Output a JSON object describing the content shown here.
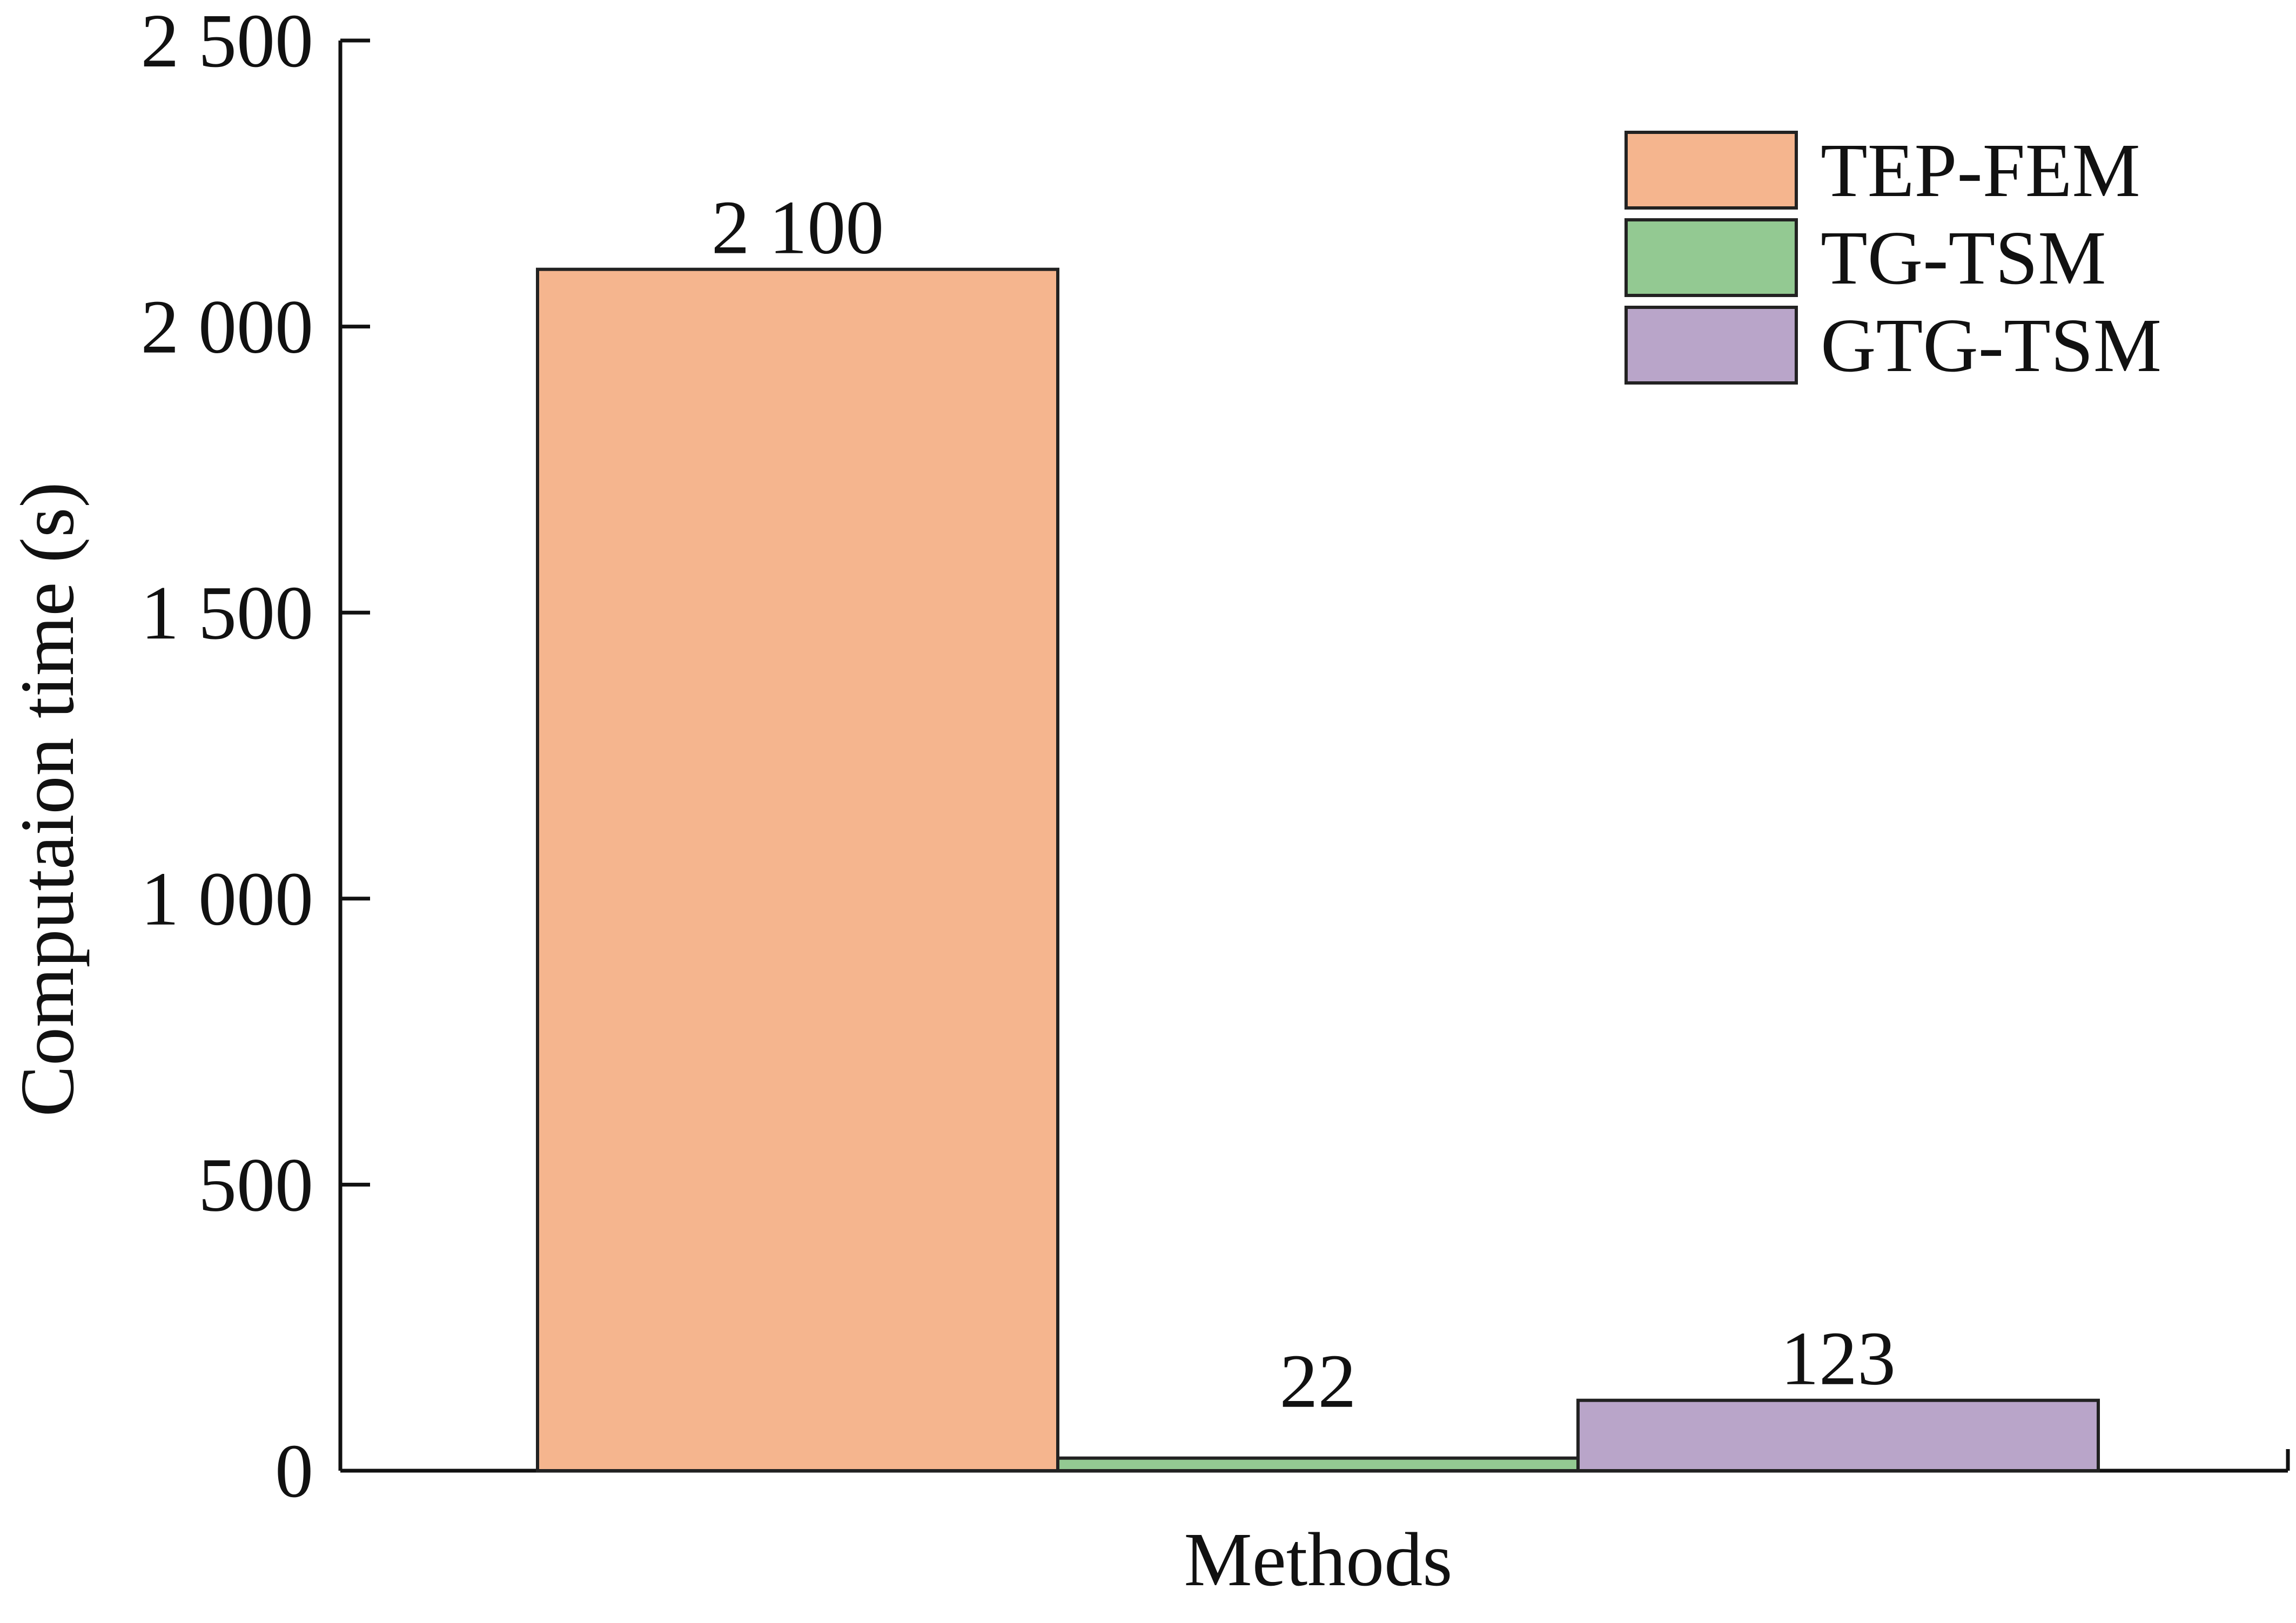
{
  "chart_data": {
    "type": "bar",
    "xlabel": "Methods",
    "ylabel": "Computaion time (s)",
    "ylim": [
      0,
      2500
    ],
    "yticks": [
      0,
      500,
      1000,
      1500,
      2000,
      2500
    ],
    "ytick_labels": [
      "0",
      "500",
      "1 000",
      "1 500",
      "2 000",
      "2 500"
    ],
    "grid": false,
    "legend_position": "top-right",
    "series": [
      {
        "name": "TEP-FEM",
        "value": 2100,
        "label": "2 100",
        "color": "#F5B58E"
      },
      {
        "name": "TG-TSM",
        "value": 22,
        "label": "22",
        "color": "#93C992"
      },
      {
        "name": "GTG-TSM",
        "value": 123,
        "label": "123",
        "color": "#B9A5C9"
      }
    ]
  }
}
